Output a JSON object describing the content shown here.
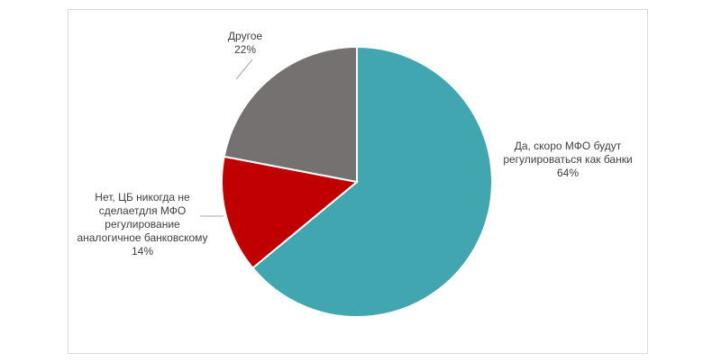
{
  "chart_data": {
    "type": "pie",
    "categories": [
      "Да, скоро МФО будут регулироваться как банки",
      "Нет, ЦБ никогда не сделаетдля МФО регулирование аналогичное банковскому",
      "Другое"
    ],
    "values": [
      64,
      14,
      22
    ],
    "value_labels": [
      "64%",
      "14%",
      "22%"
    ],
    "colors": [
      "#41a6b0",
      "#c00000",
      "#767171"
    ]
  }
}
